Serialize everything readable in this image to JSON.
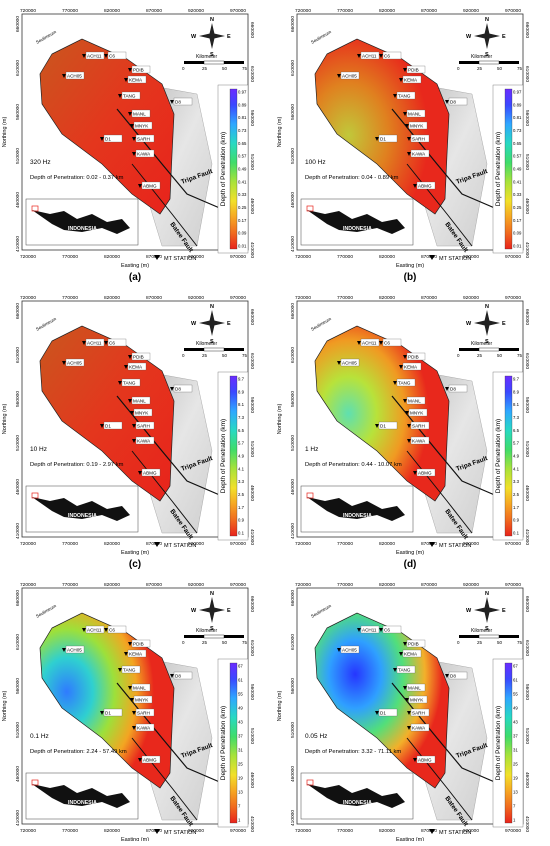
{
  "axes": {
    "easting_label": "Easting (m)",
    "northing_label": "Northing (m)",
    "x_ticks": [
      "720000",
      "770000",
      "820000",
      "870000",
      "920000",
      "970000"
    ],
    "y_ticks": [
      "660000",
      "610000",
      "560000",
      "510000",
      "460000",
      "410000"
    ]
  },
  "legend_text": {
    "scale_title": "Kilometer",
    "scale_ticks": [
      "0",
      "25",
      "50",
      "75"
    ],
    "compass": {
      "n": "N",
      "s": "S",
      "e": "E",
      "w": "W"
    },
    "mt_station": "MT STATION",
    "colorbar_title": "Depth of Penetration (km)",
    "inset_label": "INDONESIA"
  },
  "map_labels": {
    "stations": [
      "ACH11",
      "C6",
      "ACH05",
      "PDIB",
      "KEMA",
      "TANG",
      "MANL",
      "MNYK",
      "SARH",
      "KAWA",
      "ABMG",
      "D1",
      "D8"
    ],
    "faults": [
      "Tripa Fault",
      "Batee Fault"
    ],
    "sea": "Seulimeum"
  },
  "panels": [
    {
      "tag": "(a)",
      "freq": "320 Hz",
      "depth": "Depth of Penetration: 0.02 - 0.37 km",
      "ticks": [
        "0.97",
        "0.89",
        "0.81",
        "0.73",
        "0.65",
        "0.57",
        "0.49",
        "0.41",
        "0.33",
        "0.25",
        "0.17",
        "0.09",
        "0.01"
      ]
    },
    {
      "tag": "(b)",
      "freq": "100 Hz",
      "depth": "Depth of Penetration: 0.04 - 0.89 km",
      "ticks": [
        "0.97",
        "0.89",
        "0.81",
        "0.73",
        "0.65",
        "0.57",
        "0.49",
        "0.41",
        "0.33",
        "0.25",
        "0.17",
        "0.09",
        "0.01"
      ]
    },
    {
      "tag": "(c)",
      "freq": "10 Hz",
      "depth": "Depth of Penetration: 0.19 - 2.97 km",
      "ticks": [
        "9.7",
        "8.9",
        "8.1",
        "7.3",
        "6.5",
        "5.7",
        "4.9",
        "4.1",
        "3.3",
        "2.5",
        "1.7",
        "0.9",
        "0.1"
      ]
    },
    {
      "tag": "(d)",
      "freq": "1 Hz",
      "depth": "Depth of Penetration: 0.44 - 10.07 km",
      "ticks": [
        "9.7",
        "8.9",
        "8.1",
        "7.3",
        "6.5",
        "5.7",
        "4.9",
        "4.1",
        "3.3",
        "2.5",
        "1.7",
        "0.9",
        "0.1"
      ]
    },
    {
      "tag": "(e)",
      "freq": "0.1 Hz",
      "depth": "Depth of Penetration: 2.24 - 57.49 km",
      "ticks": [
        "67",
        "61",
        "55",
        "49",
        "43",
        "37",
        "31",
        "25",
        "19",
        "13",
        "7",
        "1"
      ]
    },
    {
      "tag": "(f)",
      "freq": "0.05 Hz",
      "depth": "Depth of Penetration: 3.32 - 71.11 km",
      "ticks": [
        "67",
        "61",
        "55",
        "49",
        "43",
        "37",
        "31",
        "25",
        "19",
        "13",
        "7",
        "1"
      ]
    }
  ],
  "colors": {
    "colorbar": [
      "#7b2fff",
      "#3a48ff",
      "#2fa7ff",
      "#28d9c2",
      "#3fdc6a",
      "#a8e23a",
      "#f2e02a",
      "#f6a623",
      "#f06a1f",
      "#e8231c"
    ]
  }
}
